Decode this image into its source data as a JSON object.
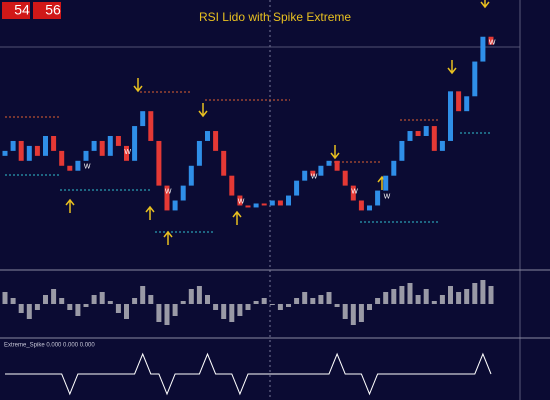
{
  "clock": {
    "hours": "54",
    "minutes": "56"
  },
  "chart_data": [
    {
      "type": "candlestick",
      "title": "RSI Lido with Spike Extreme",
      "up_color": "#2f8fe8",
      "down_color": "#e53935",
      "ylim": [
        0,
        268
      ],
      "open": [
        113,
        118,
        128,
        108,
        123,
        113,
        133,
        118,
        103,
        98,
        108,
        118,
        128,
        113,
        133,
        123,
        108,
        143,
        158,
        128,
        83,
        58,
        68,
        83,
        103,
        128,
        138,
        118,
        93,
        73,
        63,
        61,
        65,
        63,
        68,
        63,
        73,
        88,
        98,
        93,
        103,
        108,
        98,
        83,
        68,
        58,
        63,
        78,
        93,
        108,
        128,
        138,
        133,
        143,
        118,
        128,
        178,
        158,
        173,
        208,
        233
      ],
      "close": [
        118,
        128,
        108,
        123,
        113,
        133,
        118,
        103,
        98,
        108,
        118,
        128,
        113,
        133,
        123,
        108,
        143,
        158,
        128,
        83,
        58,
        68,
        83,
        103,
        128,
        138,
        118,
        93,
        73,
        63,
        61,
        65,
        63,
        68,
        63,
        73,
        88,
        98,
        93,
        103,
        108,
        98,
        83,
        68,
        58,
        63,
        78,
        93,
        108,
        128,
        138,
        133,
        143,
        118,
        128,
        178,
        158,
        173,
        208,
        233,
        225
      ],
      "annotations": [
        {
          "x": 9,
          "text": "W"
        },
        {
          "x": 14,
          "text": "W"
        },
        {
          "x": 19,
          "text": "W"
        },
        {
          "x": 28,
          "text": "W"
        },
        {
          "x": 37,
          "text": "W"
        },
        {
          "x": 42,
          "text": "W"
        },
        {
          "x": 46,
          "text": "W"
        },
        {
          "x": 59,
          "text": "W"
        }
      ]
    },
    {
      "type": "bar",
      "color": "#9a9aa6",
      "ylim": [
        -50,
        50
      ],
      "values": [
        20,
        10,
        -15,
        -25,
        -10,
        15,
        25,
        10,
        -10,
        -20,
        -5,
        15,
        20,
        5,
        -15,
        -25,
        10,
        30,
        15,
        -30,
        -35,
        -20,
        5,
        25,
        30,
        15,
        -10,
        -25,
        -30,
        -20,
        -10,
        5,
        10,
        0,
        -10,
        -5,
        10,
        20,
        10,
        15,
        20,
        -5,
        -25,
        -35,
        -30,
        -10,
        10,
        20,
        25,
        30,
        35,
        15,
        25,
        5,
        15,
        30,
        20,
        25,
        35,
        40,
        30
      ]
    },
    {
      "type": "line",
      "title": "Extreme_Spike 0.000 0.000 0.000",
      "color": "#ffffff",
      "ylim": [
        -1.2,
        1.2
      ],
      "values": [
        0,
        0,
        0,
        0,
        0,
        0,
        0,
        0,
        -1,
        0,
        0,
        0,
        0,
        0,
        0,
        0,
        0,
        1,
        0,
        0,
        -1,
        0,
        0,
        0,
        0,
        1,
        0,
        0,
        0,
        -1,
        0,
        0,
        0,
        0,
        0,
        0,
        0,
        0,
        0,
        0,
        0,
        1,
        0,
        0,
        0,
        -1,
        0,
        0,
        0,
        0,
        0,
        0,
        0,
        0,
        0,
        0,
        0,
        0,
        0,
        1,
        0
      ]
    }
  ]
}
